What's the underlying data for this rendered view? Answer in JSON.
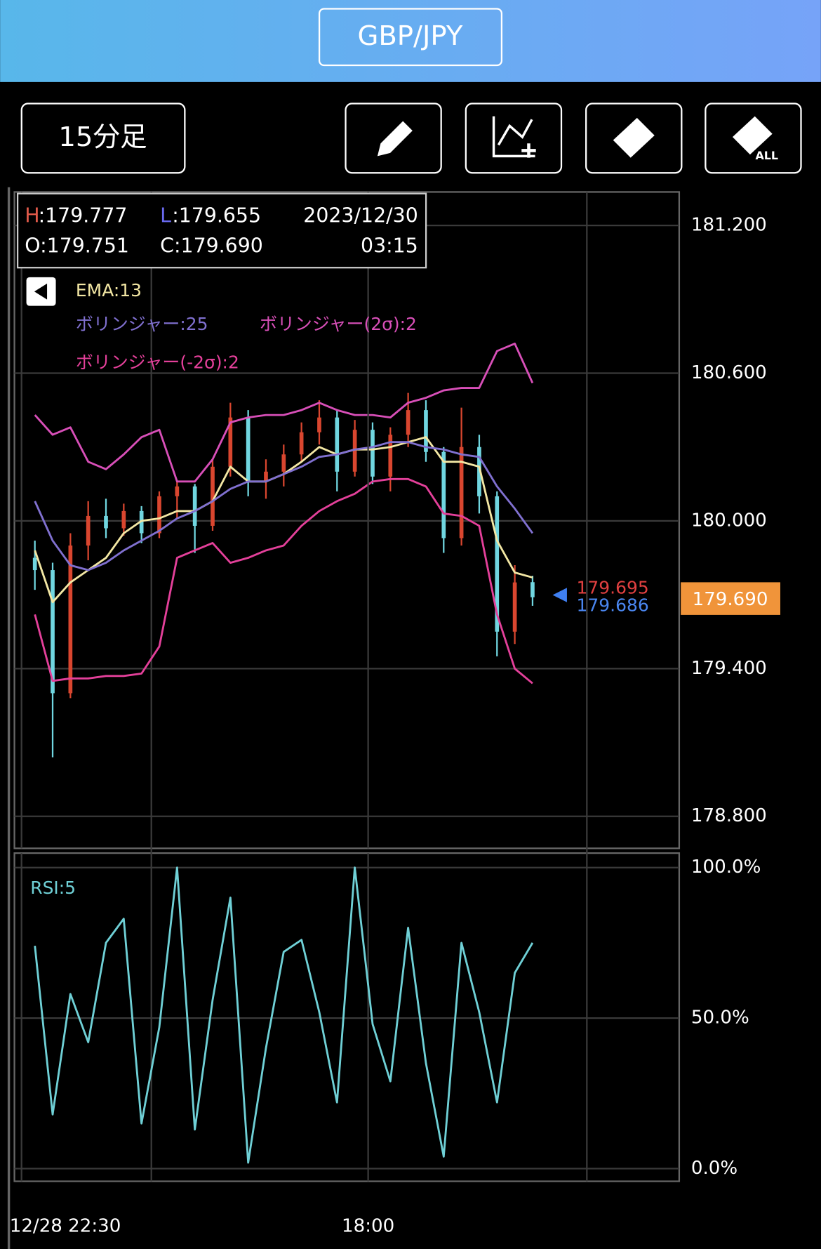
{
  "header": {
    "title": "GBP/JPY"
  },
  "toolbar": {
    "timeframe": "15分足",
    "clear_all_label": "ALL"
  },
  "info": {
    "high_key": "H",
    "high": ":179.777",
    "low_key": "L",
    "low": ":179.655",
    "date": "2023/12/30",
    "open": "O:179.751",
    "close": "C:179.690",
    "time": "03:15"
  },
  "chart_data": [
    {
      "type": "candlestick",
      "x": [
        3,
        7,
        11,
        15,
        19,
        23,
        27,
        31,
        35,
        39,
        43,
        47,
        51,
        55,
        59,
        63,
        67,
        71,
        75,
        79,
        83,
        87,
        91,
        95,
        99,
        103,
        107,
        111,
        115
      ],
      "open": [
        179.85,
        179.8,
        179.3,
        179.9,
        180.02,
        179.97,
        180.04,
        179.95,
        180.1,
        180.14,
        179.98,
        180.22,
        180.42,
        180.16,
        180.2,
        180.27,
        180.36,
        180.42,
        180.2,
        180.37,
        180.18,
        180.35,
        180.45,
        180.28,
        179.93,
        180.3,
        180.1,
        179.55,
        179.751
      ],
      "high": [
        179.92,
        179.83,
        179.95,
        180.08,
        180.09,
        180.07,
        180.06,
        180.12,
        180.16,
        180.15,
        180.25,
        180.48,
        180.45,
        180.25,
        180.31,
        180.4,
        180.49,
        180.45,
        180.41,
        180.4,
        180.38,
        180.52,
        180.49,
        180.3,
        180.46,
        180.35,
        180.12,
        179.82,
        179.777
      ],
      "low": [
        179.72,
        179.04,
        179.28,
        179.84,
        179.93,
        179.94,
        179.91,
        179.93,
        180.01,
        179.87,
        179.96,
        180.18,
        180.1,
        180.09,
        180.14,
        180.24,
        180.31,
        180.12,
        180.18,
        180.15,
        180.12,
        180.3,
        180.24,
        179.87,
        179.9,
        180.03,
        179.45,
        179.5,
        179.655
      ],
      "close": [
        179.8,
        179.3,
        179.9,
        180.02,
        179.97,
        180.04,
        179.95,
        180.1,
        180.14,
        179.98,
        180.22,
        180.42,
        180.16,
        180.2,
        180.27,
        180.36,
        180.42,
        180.2,
        180.37,
        180.18,
        180.35,
        180.45,
        180.28,
        179.93,
        180.3,
        180.1,
        179.55,
        179.75,
        179.69
      ],
      "up_color": "#d9462f",
      "down_color": "#70d6e0",
      "series": [
        {
          "name": "EMA:13",
          "color": "#f3e7a4",
          "values": [
            179.88,
            179.67,
            179.75,
            179.8,
            179.85,
            179.95,
            180.0,
            180.01,
            180.04,
            180.04,
            180.08,
            180.22,
            180.16,
            180.16,
            180.19,
            180.24,
            180.3,
            180.27,
            180.29,
            180.29,
            180.3,
            180.32,
            180.34,
            180.24,
            180.24,
            180.22,
            179.92,
            179.79,
            179.77
          ]
        },
        {
          "name": "ボリンジャー:25",
          "color": "#8070d0",
          "values": [
            180.08,
            179.92,
            179.82,
            179.8,
            179.83,
            179.88,
            179.92,
            179.96,
            180.01,
            180.04,
            180.08,
            180.13,
            180.16,
            180.16,
            180.19,
            180.22,
            180.26,
            180.27,
            180.29,
            180.3,
            180.32,
            180.32,
            180.3,
            180.29,
            180.27,
            180.26,
            180.14,
            180.05,
            179.95
          ]
        },
        {
          "name": "ボリンジャー(2σ):2",
          "color": "#d84fb8",
          "values": [
            180.43,
            180.35,
            180.38,
            180.24,
            180.21,
            180.27,
            180.34,
            180.37,
            180.16,
            180.16,
            180.25,
            180.4,
            180.42,
            180.43,
            180.43,
            180.45,
            180.48,
            180.45,
            180.43,
            180.43,
            180.42,
            180.48,
            180.5,
            180.53,
            180.54,
            180.54,
            180.69,
            180.72,
            180.56
          ]
        },
        {
          "name": "ボリンジャー(-2σ):2",
          "color": "#e4409a",
          "values": [
            179.62,
            179.35,
            179.36,
            179.36,
            179.37,
            179.37,
            179.38,
            179.49,
            179.85,
            179.88,
            179.91,
            179.83,
            179.85,
            179.88,
            179.9,
            179.98,
            180.04,
            180.08,
            180.11,
            180.16,
            180.17,
            180.17,
            180.14,
            180.03,
            180.02,
            179.98,
            179.62,
            179.4,
            179.34
          ]
        }
      ],
      "xlim": [
        -1.6,
        148
      ],
      "ylim": [
        178.67,
        181.336
      ],
      "yticks": [
        {
          "value": 181.2,
          "label": "181.200"
        },
        {
          "value": 180.6,
          "label": "180.600"
        },
        {
          "value": 180.0,
          "label": "180.000"
        },
        {
          "value": 179.4,
          "label": "179.400"
        },
        {
          "value": 178.8,
          "label": "178.800"
        }
      ],
      "markers": [
        "179.695",
        "179.686"
      ],
      "current_price": "179.690",
      "grid": true
    },
    {
      "type": "line",
      "x": [
        3,
        7,
        11,
        15,
        19,
        23,
        27,
        31,
        35,
        39,
        43,
        47,
        51,
        55,
        59,
        63,
        67,
        71,
        75,
        79,
        83,
        87,
        91,
        95,
        99,
        103,
        107,
        111,
        115
      ],
      "series": [
        {
          "name": "RSI:5",
          "color": "#6fd0d6",
          "values": [
            74,
            18,
            58,
            42,
            75,
            83,
            15,
            47,
            100,
            13,
            56,
            90,
            2,
            40,
            72,
            76,
            52,
            22,
            100,
            48,
            29,
            80,
            35,
            4,
            75,
            52,
            22,
            65,
            75
          ]
        }
      ],
      "xlim": [
        -1.6,
        148
      ],
      "xticks": [
        {
          "value": 0,
          "label": "12/28 22:30"
        },
        {
          "value": 78,
          "label": "18:00"
        }
      ],
      "ylim": [
        -4.2,
        104.8
      ],
      "yticks": [
        {
          "value": 100,
          "label": "100.0%"
        },
        {
          "value": 50,
          "label": "50.0%"
        },
        {
          "value": 0,
          "label": "0.0%"
        }
      ],
      "grid": true
    }
  ]
}
